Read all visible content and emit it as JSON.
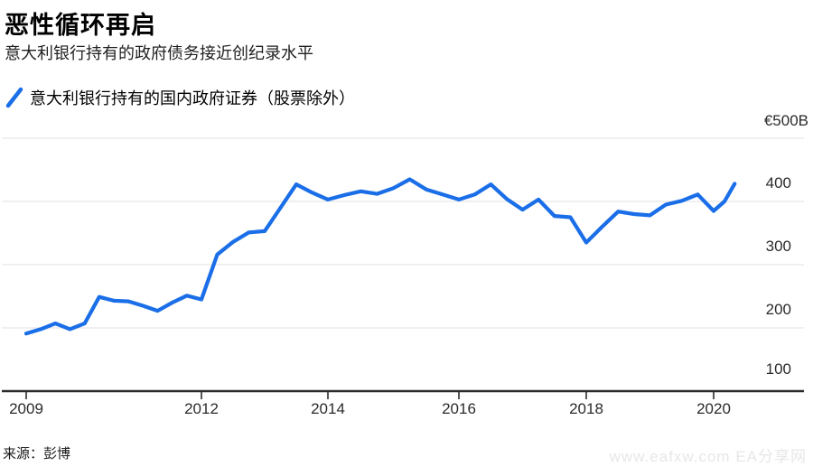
{
  "header": {
    "title": "恶性循环再启",
    "subtitle": "意大利银行持有的政府债务接近创纪录水平"
  },
  "legend": {
    "label": "意大利银行持有的国内政府证券（股票除外）",
    "line_color": "#1a6ee8"
  },
  "footer": {
    "source": "来源：彭博",
    "watermark": "www.eafxw.com  EA分享网"
  },
  "chart_data": {
    "type": "line",
    "title": "恶性循环再启",
    "subtitle": "意大利银行持有的政府债务接近创纪录水平",
    "unit": "€B",
    "ylim": [
      100,
      500
    ],
    "grid": "horizontal",
    "legend_position": "top-left",
    "y_ticks": [
      "€500B",
      "400",
      "300",
      "200",
      "100"
    ],
    "x_ticks": [
      "2009",
      "2012",
      "2014",
      "2016",
      "2018",
      "2020"
    ],
    "series": [
      {
        "name": "意大利银行持有的国内政府证券（股票除外）",
        "color": "#1a6ee8",
        "x": [
          2009,
          2009.25,
          2009.5,
          2009.75,
          2010,
          2010.25,
          2010.5,
          2010.75,
          2011,
          2011.25,
          2011.5,
          2011.75,
          2012,
          2012.25,
          2012.5,
          2012.75,
          2013,
          2013.25,
          2013.5,
          2013.75,
          2014,
          2014.25,
          2014.5,
          2014.75,
          2015,
          2015.25,
          2015.5,
          2015.75,
          2016,
          2016.25,
          2016.5,
          2016.75,
          2017,
          2017.25,
          2017.5,
          2017.75,
          2018,
          2018.25,
          2018.5,
          2018.75,
          2019,
          2019.25,
          2019.5,
          2019.75,
          2020,
          2020.17,
          2020.33
        ],
        "values": [
          191,
          198,
          207,
          198,
          207,
          249,
          243,
          242,
          235,
          227,
          240,
          251,
          245,
          316,
          336,
          351,
          353,
          390,
          427,
          414,
          403,
          410,
          416,
          412,
          421,
          435,
          419,
          411,
          403,
          411,
          427,
          404,
          387,
          403,
          377,
          375,
          335,
          360,
          384,
          380,
          378,
          395,
          401,
          411,
          385,
          400,
          428
        ]
      }
    ]
  }
}
